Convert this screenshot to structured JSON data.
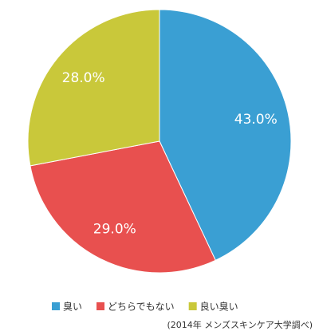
{
  "chart_data": {
    "type": "pie",
    "categories": [
      "臭い",
      "どちらでもない",
      "良い臭い"
    ],
    "values": [
      43,
      29,
      28
    ],
    "value_labels": [
      "43.0%",
      "29.0%",
      "28.0%"
    ],
    "colors": [
      "#3a9fd3",
      "#e8504f",
      "#c9c83a"
    ],
    "source": "(2014年 メンズスキンケア大学調べ)"
  }
}
